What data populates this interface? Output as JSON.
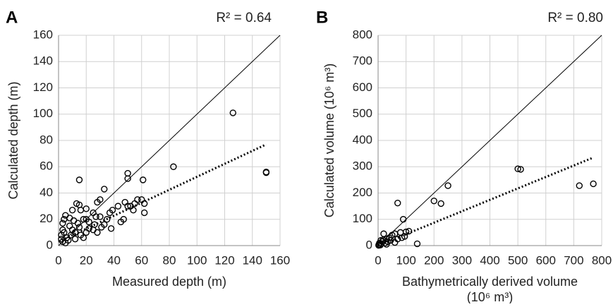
{
  "chart_data": [
    {
      "type": "scatter",
      "panel": "A",
      "annotation": "R² = 0.64",
      "xlabel": [
        "Measured depth (m)"
      ],
      "ylabel": "Calculated depth (m)",
      "xlim": [
        0,
        160
      ],
      "ylim": [
        0,
        160
      ],
      "xticks": [
        0,
        20,
        40,
        60,
        80,
        100,
        120,
        140,
        160
      ],
      "yticks": [
        0,
        20,
        40,
        60,
        80,
        100,
        120,
        140,
        160
      ],
      "grid": true,
      "x": [
        126,
        150,
        150,
        83,
        50,
        50,
        61,
        15,
        33,
        62,
        62,
        60,
        57,
        55,
        52,
        48,
        50,
        47,
        45,
        39,
        37,
        35,
        30,
        28,
        13,
        15,
        16,
        20,
        25,
        27,
        30,
        33,
        38,
        20,
        22,
        18,
        10,
        5,
        3,
        4,
        8,
        10,
        12,
        15,
        20,
        25,
        28,
        6,
        3,
        2,
        4,
        7,
        9,
        12,
        16,
        22,
        14,
        11,
        8,
        2,
        5,
        3,
        18,
        26,
        31,
        43,
        54
      ],
      "series": [
        {
          "color": "#000000",
          "values": [
            101,
            56,
            55.5,
            60,
            55,
            51,
            50,
            50,
            43,
            25,
            32,
            35,
            35,
            32,
            30,
            33,
            30,
            20,
            18,
            27,
            25,
            20,
            35,
            33,
            32,
            31,
            27,
            28,
            25,
            22,
            22,
            16,
            13,
            20,
            18,
            20,
            27,
            23,
            17,
            20,
            15,
            12,
            10,
            14,
            10,
            12,
            10,
            6,
            3,
            8,
            10,
            4,
            8,
            5,
            8,
            13,
            17,
            19,
            21,
            5,
            2,
            12,
            6,
            16,
            14,
            30,
            27
          ]
        }
      ],
      "reference_lines": [
        {
          "x": [
            0,
            160
          ],
          "y": [
            0,
            160
          ],
          "style": "solid"
        },
        {
          "x": [
            0,
            150
          ],
          "y": [
            3,
            77
          ],
          "style": "dotted"
        }
      ]
    },
    {
      "type": "scatter",
      "panel": "B",
      "annotation": "R² = 0.80",
      "xlabel": [
        "Bathymetrically derived volume",
        "(10⁶ m³)"
      ],
      "ylabel": "Calculated volume (10⁶ m³)",
      "xlim": [
        0,
        800
      ],
      "ylim": [
        0,
        800
      ],
      "xticks": [
        0,
        100,
        200,
        300,
        400,
        500,
        600,
        700,
        800
      ],
      "yticks": [
        0,
        100,
        200,
        300,
        400,
        500,
        600,
        700,
        800
      ],
      "grid": true,
      "x": [
        770,
        720,
        510,
        500,
        250,
        225,
        200,
        70,
        90,
        140,
        110,
        100,
        80,
        60,
        50,
        40,
        30,
        20,
        10,
        5,
        3,
        15,
        25,
        35,
        45,
        70,
        85,
        95,
        60,
        30,
        8,
        2,
        12,
        18
      ],
      "series": [
        {
          "color": "#000000",
          "values": [
            235,
            228,
            290,
            292,
            228,
            160,
            170,
            162,
            100,
            7,
            55,
            52,
            50,
            45,
            40,
            30,
            25,
            45,
            20,
            10,
            5,
            15,
            10,
            15,
            20,
            25,
            30,
            35,
            12,
            5,
            2,
            1,
            8,
            22
          ]
        }
      ],
      "reference_lines": [
        {
          "x": [
            0,
            800
          ],
          "y": [
            0,
            800
          ],
          "style": "solid"
        },
        {
          "x": [
            0,
            770
          ],
          "y": [
            0,
            335
          ],
          "style": "dotted"
        }
      ]
    }
  ]
}
